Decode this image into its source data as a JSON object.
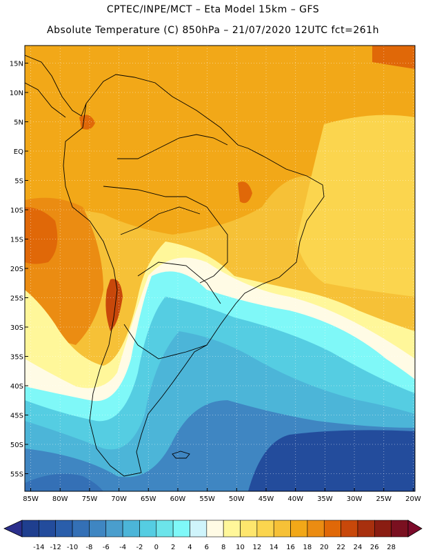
{
  "header": {
    "line1": "CPTEC/INPE/MCT –  Eta Model 15km – GFS",
    "line2": "Absolute Temperature (C) 850hPa – 21/07/2020 12UTC fct=261h"
  },
  "map": {
    "lat_labels": [
      "15N",
      "10N",
      "5N",
      "EQ",
      "5S",
      "10S",
      "15S",
      "20S",
      "25S",
      "30S",
      "35S",
      "40S",
      "45S",
      "50S",
      "55S"
    ],
    "lon_labels": [
      "85W",
      "80W",
      "75W",
      "70W",
      "65W",
      "60W",
      "55W",
      "50W",
      "45W",
      "40W",
      "35W",
      "30W",
      "25W",
      "20W"
    ]
  },
  "colorbar": {
    "labels": [
      "-14",
      "-12",
      "-10",
      "-8",
      "-6",
      "-4",
      "-2",
      "0",
      "2",
      "4",
      "6",
      "8",
      "10",
      "12",
      "14",
      "16",
      "18",
      "20",
      "22",
      "24",
      "26",
      "28"
    ],
    "colors": [
      "#1f3f8f",
      "#234c9c",
      "#2a5eab",
      "#3470b6",
      "#3f86c2",
      "#4a9ecd",
      "#4cb5d8",
      "#55cde2",
      "#6ce4ea",
      "#7ff8f8",
      "#cff4fb",
      "#fffbe5",
      "#fff79a",
      "#fee66d",
      "#fbd54e",
      "#f6c137",
      "#f2a818",
      "#eb8c12",
      "#e06808",
      "#c8480a",
      "#a8300e",
      "#8a1d12",
      "#7a1020"
    ],
    "under_color": "#2b2f8c",
    "over_color": "#7c0a2a"
  }
}
